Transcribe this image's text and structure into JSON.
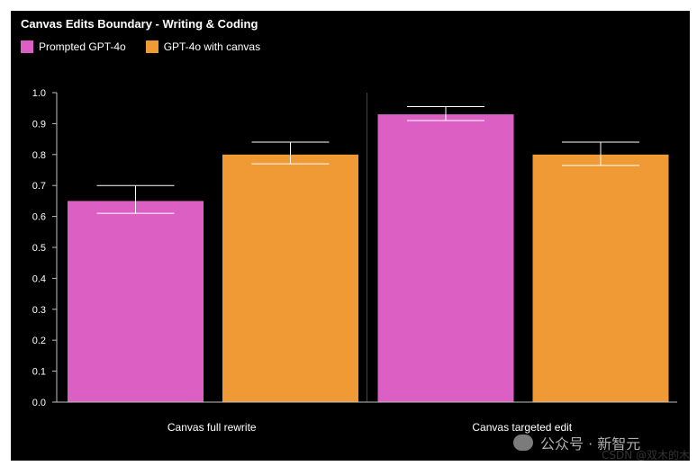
{
  "colors": {
    "background": "#000000",
    "series1": "#dc5fc3",
    "series2": "#f09a36",
    "text": "#ffffff"
  },
  "chart_data": {
    "type": "bar",
    "title": "Canvas Edits Boundary - Writing & Coding",
    "categories": [
      "Canvas full rewrite",
      "Canvas targeted edit"
    ],
    "series": [
      {
        "name": "Prompted GPT-4o",
        "values": [
          0.65,
          0.93
        ],
        "err_low": [
          0.61,
          0.91
        ],
        "err_high": [
          0.7,
          0.955
        ]
      },
      {
        "name": "GPT-4o with canvas",
        "values": [
          0.8,
          0.8
        ],
        "err_low": [
          0.77,
          0.765
        ],
        "err_high": [
          0.84,
          0.84
        ]
      }
    ],
    "ylim": [
      0.0,
      1.0
    ],
    "yticks": [
      "0.0",
      "0.1",
      "0.2",
      "0.3",
      "0.4",
      "0.5",
      "0.6",
      "0.7",
      "0.8",
      "0.9",
      "1.0"
    ],
    "legend_position": "top-left",
    "grid": false,
    "error_bars": true
  },
  "watermark": "公众号 · 新智元",
  "footer": "CSDN @双木的木"
}
